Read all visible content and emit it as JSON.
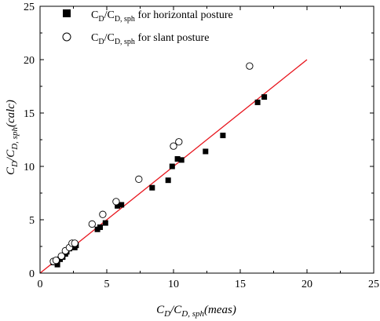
{
  "chart_data": {
    "type": "scatter",
    "xlabel": "C_D/C_D, sph(meas)",
    "ylabel": "C_D/C_D, sph(calc)",
    "xlim": [
      0,
      25
    ],
    "ylim": [
      0,
      25
    ],
    "xticks": [
      0,
      5,
      10,
      15,
      20,
      25
    ],
    "yticks": [
      0,
      5,
      10,
      15,
      20,
      25
    ],
    "grid": false,
    "legend_position": "top-left",
    "series": [
      {
        "name": "C_D/C_D, sph for horizontal posture",
        "marker": "filled-square",
        "color": "#000000",
        "points": [
          [
            1.0,
            1.0
          ],
          [
            1.3,
            0.8
          ],
          [
            1.5,
            1.3
          ],
          [
            1.7,
            1.5
          ],
          [
            1.9,
            1.8
          ],
          [
            2.0,
            2.0
          ],
          [
            2.2,
            2.3
          ],
          [
            2.6,
            2.4
          ],
          [
            2.7,
            2.6
          ],
          [
            4.3,
            4.1
          ],
          [
            4.5,
            4.3
          ],
          [
            4.9,
            4.7
          ],
          [
            5.8,
            6.3
          ],
          [
            6.1,
            6.4
          ],
          [
            8.4,
            8.0
          ],
          [
            9.6,
            8.7
          ],
          [
            9.9,
            10.0
          ],
          [
            10.3,
            10.7
          ],
          [
            10.6,
            10.6
          ],
          [
            12.4,
            11.4
          ],
          [
            13.7,
            12.9
          ],
          [
            16.3,
            16.0
          ],
          [
            16.8,
            16.5
          ]
        ]
      },
      {
        "name": "C_D/C_D, sph for slant posture",
        "marker": "open-circle",
        "color": "#000000",
        "points": [
          [
            1.0,
            1.1
          ],
          [
            1.2,
            1.2
          ],
          [
            1.6,
            1.6
          ],
          [
            1.9,
            2.1
          ],
          [
            2.2,
            2.4
          ],
          [
            2.4,
            2.8
          ],
          [
            2.6,
            2.8
          ],
          [
            3.9,
            4.6
          ],
          [
            4.7,
            5.5
          ],
          [
            5.7,
            6.7
          ],
          [
            7.4,
            8.8
          ],
          [
            10.0,
            11.9
          ],
          [
            10.4,
            12.3
          ],
          [
            15.7,
            19.4
          ]
        ]
      },
      {
        "name": "",
        "type": "line",
        "color": "#e8141c",
        "points": [
          [
            0,
            0
          ],
          [
            20,
            20
          ]
        ]
      }
    ]
  }
}
